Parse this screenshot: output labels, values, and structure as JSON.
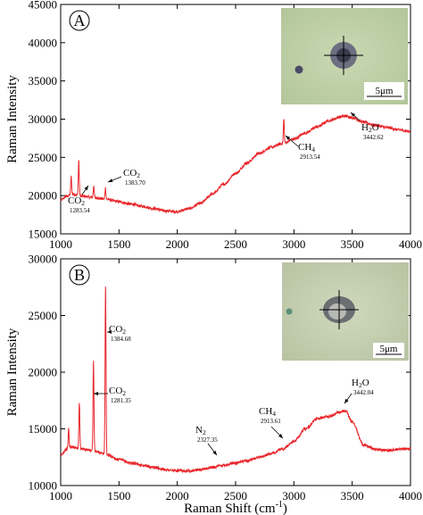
{
  "chart_data": [
    {
      "type": "line",
      "panel_label": "A",
      "x_range": [
        1000,
        4000
      ],
      "ylim": [
        15000,
        45000
      ],
      "x_ticks": [
        "1000",
        "1500",
        "2000",
        "2500",
        "3000",
        "3500",
        "4000"
      ],
      "y_ticks": [
        "15000",
        "20000",
        "25000",
        "30000",
        "35000",
        "40000",
        "45000"
      ],
      "xlabel": "",
      "ylabel": "Raman Intensity",
      "grid": false,
      "line_color": "#e8262a",
      "x": [
        1000,
        1050,
        1100,
        1200,
        1300,
        1400,
        1500,
        1600,
        1700,
        1800,
        1900,
        2000,
        2100,
        2200,
        2300,
        2400,
        2500,
        2600,
        2700,
        2800,
        2900,
        3000,
        3100,
        3200,
        3300,
        3400,
        3442,
        3500,
        3600,
        3700,
        3800,
        3900,
        4000
      ],
      "y": [
        19400,
        19900,
        20200,
        19900,
        19700,
        19500,
        19200,
        18900,
        18600,
        18300,
        18000,
        17900,
        18300,
        19000,
        20200,
        21500,
        22900,
        24300,
        25500,
        26300,
        26800,
        27400,
        28200,
        29000,
        29800,
        30300,
        30400,
        30200,
        29600,
        29200,
        28900,
        28600,
        28400
      ],
      "peaks": [
        {
          "x": 1090,
          "height": 2300
        },
        {
          "x": 1155,
          "height": 4600
        },
        {
          "x": 1283.54,
          "height": 1600
        },
        {
          "x": 1383.7,
          "height": 1500
        },
        {
          "x": 2913.54,
          "height": 3200
        }
      ],
      "annotations": [
        {
          "label": "CO",
          "sub": "2",
          "value": "1383.70"
        },
        {
          "label": "CO",
          "sub": "2",
          "value": "1283.54"
        },
        {
          "label": "CH",
          "sub": "4",
          "value": "2913.54"
        },
        {
          "label": "H",
          "sub": "2",
          "label2": "O",
          "value": "3442.62"
        }
      ],
      "inset": {
        "scale_bar": "5μm"
      }
    },
    {
      "type": "line",
      "panel_label": "B",
      "x_range": [
        1000,
        4000
      ],
      "ylim": [
        10000,
        30000
      ],
      "x_ticks": [
        "1000",
        "1500",
        "2000",
        "2500",
        "3000",
        "3500",
        "4000"
      ],
      "y_ticks": [
        "10000",
        "15000",
        "20000",
        "25000",
        "30000"
      ],
      "xlabel": "Raman Shift (cm",
      "xlabel_sup": "-1",
      "xlabel_end": ")",
      "ylabel": "Raman Intensity",
      "grid": false,
      "line_color": "#e8262a",
      "x": [
        1000,
        1050,
        1100,
        1200,
        1300,
        1400,
        1500,
        1600,
        1700,
        1800,
        1900,
        2000,
        2100,
        2200,
        2300,
        2400,
        2500,
        2600,
        2700,
        2800,
        2900,
        3000,
        3100,
        3200,
        3300,
        3400,
        3442,
        3500,
        3600,
        3700,
        3800,
        3900,
        4000
      ],
      "y": [
        12700,
        13200,
        13400,
        13200,
        13000,
        12700,
        12300,
        12000,
        11800,
        11600,
        11400,
        11300,
        11300,
        11400,
        11600,
        11800,
        12000,
        12200,
        12500,
        12800,
        13200,
        13900,
        15000,
        15900,
        16100,
        16500,
        16600,
        15600,
        13600,
        13200,
        13100,
        13200,
        13300
      ],
      "peaks": [
        {
          "x": 1068,
          "height": 1800
        },
        {
          "x": 1160,
          "height": 4000
        },
        {
          "x": 1281.35,
          "height": 8100
        },
        {
          "x": 1384.68,
          "height": 15100
        }
      ],
      "annotations": [
        {
          "label": "CO",
          "sub": "2",
          "value": "1384.68"
        },
        {
          "label": "CO",
          "sub": "2",
          "value": "1281.35"
        },
        {
          "label": "N",
          "sub": "2",
          "value": "2327.35"
        },
        {
          "label": "CH",
          "sub": "4",
          "value": "2913.61"
        },
        {
          "label": "H",
          "sub": "2",
          "label2": "O",
          "value": "3442.04"
        }
      ],
      "inset": {
        "scale_bar": "5μm"
      }
    }
  ]
}
